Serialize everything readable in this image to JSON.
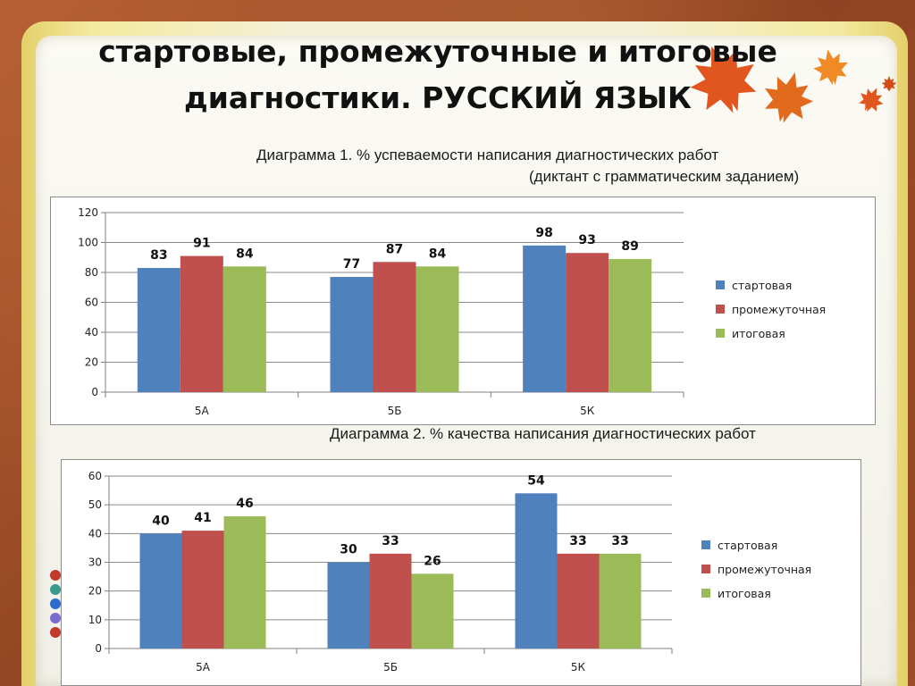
{
  "slide": {
    "title_line1": "стартовые, промежуточные  и итоговые",
    "title_line2": "диагностики. РУССКИЙ ЯЗЫК"
  },
  "charts": {
    "chart1": {
      "caption_line1": "Диаграмма  1. % успеваемости написания диагностических работ",
      "caption_line2": "(диктант с грамматическим заданием)"
    },
    "chart2": {
      "caption_line1": "Диаграмма 2. % качества написания диагностических работ"
    }
  },
  "chart_data": [
    {
      "type": "bar",
      "categories": [
        "5А",
        "5Б",
        "5К"
      ],
      "series": [
        {
          "name": "стартовая",
          "color": "#4f81bd",
          "values": [
            83,
            77,
            98
          ]
        },
        {
          "name": "промежуточная",
          "color": "#c0504d",
          "values": [
            91,
            87,
            93
          ]
        },
        {
          "name": "итоговая",
          "color": "#9bbb59",
          "values": [
            84,
            84,
            89
          ]
        }
      ],
      "ylim": [
        0,
        120
      ],
      "yticks": [
        0,
        20,
        40,
        60,
        80,
        100,
        120
      ],
      "grid": true,
      "legend": "right"
    },
    {
      "type": "bar",
      "categories": [
        "5А",
        "5Б",
        "5К"
      ],
      "series": [
        {
          "name": "стартовая",
          "color": "#4f81bd",
          "values": [
            40,
            30,
            54
          ]
        },
        {
          "name": "промежуточная",
          "color": "#c0504d",
          "values": [
            41,
            33,
            33
          ]
        },
        {
          "name": "итоговая",
          "color": "#9bbb59",
          "values": [
            46,
            26,
            33
          ]
        }
      ],
      "ylim": [
        0,
        60
      ],
      "yticks": [
        0,
        10,
        20,
        30,
        40,
        50,
        60
      ],
      "grid": true,
      "legend": "right"
    }
  ]
}
